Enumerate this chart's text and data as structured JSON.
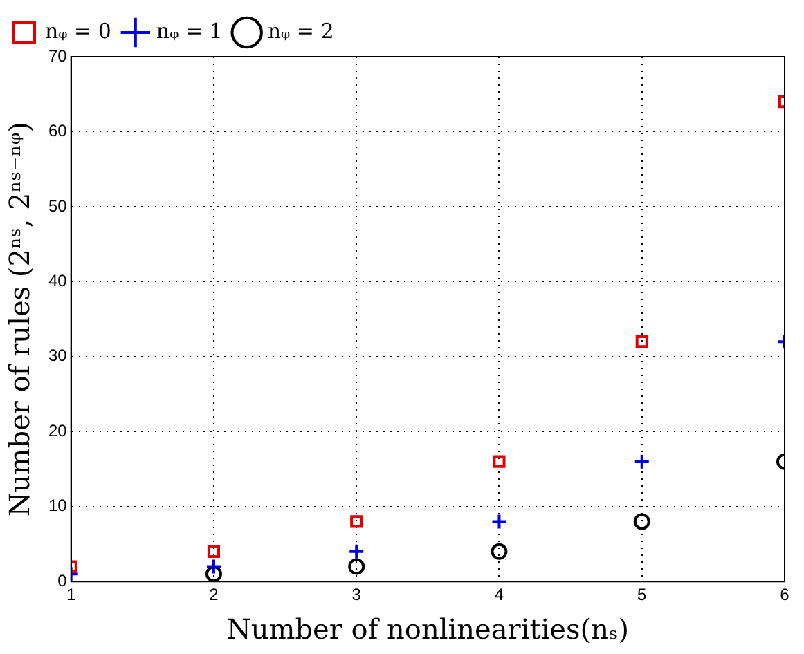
{
  "chart_data": {
    "type": "scatter",
    "xlabel": "Number of nonlinearities(nₛ)",
    "ylabel": "Number of rules (2ⁿˢ, 2ⁿˢ⁻ⁿᵠ)",
    "x": [
      1,
      2,
      3,
      4,
      5,
      6
    ],
    "series": [
      {
        "name": "nᵩ = 0",
        "color": "#e00000",
        "marker": "square",
        "values": [
          2,
          4,
          8,
          16,
          32,
          64
        ]
      },
      {
        "name": "nᵩ = 1",
        "color": "#0000e0",
        "marker": "cross",
        "values": [
          1,
          2,
          4,
          8,
          16,
          32
        ]
      },
      {
        "name": "nᵩ = 2",
        "color": "#000000",
        "marker": "circle",
        "values": [
          null,
          1,
          2,
          4,
          8,
          16
        ]
      }
    ],
    "xlim": [
      1,
      6
    ],
    "xticks": [
      1,
      2,
      3,
      4,
      5,
      6
    ],
    "ylim": [
      0,
      70
    ],
    "yticks": [
      0,
      10,
      20,
      30,
      40,
      50,
      60,
      70
    ],
    "grid": true,
    "legend": "top left"
  }
}
